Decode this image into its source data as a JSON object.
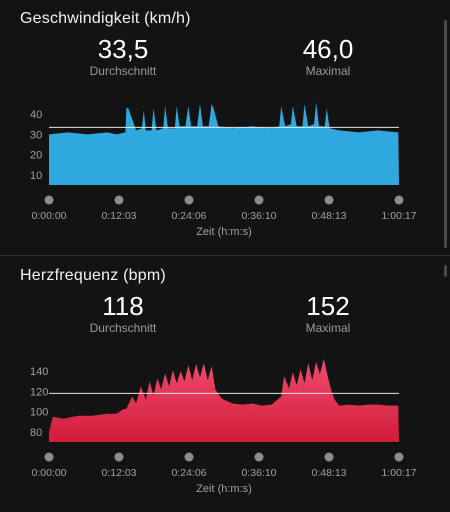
{
  "sections": {
    "speed": {
      "title": "Geschwindigkeit (km/h)",
      "avg": {
        "value": "33,5",
        "label": "Durchschnitt"
      },
      "max": {
        "value": "46,0",
        "label": "Maximal"
      }
    },
    "heart": {
      "title": "Herzfrequenz (bpm)",
      "avg": {
        "value": "118",
        "label": "Durchschnitt"
      },
      "max": {
        "value": "152",
        "label": "Maximal"
      }
    }
  },
  "chart_data": [
    {
      "type": "area",
      "title": "Geschwindigkeit (km/h)",
      "xlabel": "Zeit (h:m:s)",
      "ylabel": "",
      "color": "#2fa8de",
      "reference_line": 33.5,
      "ylim": [
        5,
        47
      ],
      "yticks": [
        10,
        20,
        30,
        40
      ],
      "xlim": [
        0,
        3617
      ],
      "xticks": [
        "0:00:00",
        "0:12:03",
        "0:24:06",
        "0:36:10",
        "0:48:13",
        "1:00:17"
      ],
      "x": [
        0,
        200,
        400,
        600,
        700,
        790,
        800,
        820,
        900,
        960,
        980,
        1000,
        1060,
        1080,
        1110,
        1180,
        1200,
        1230,
        1300,
        1320,
        1350,
        1410,
        1440,
        1470,
        1530,
        1560,
        1590,
        1650,
        1680,
        1700,
        1750,
        1900,
        2100,
        2300,
        2380,
        2400,
        2440,
        2500,
        2520,
        2560,
        2620,
        2640,
        2680,
        2740,
        2760,
        2790,
        2850,
        2870,
        2900,
        3000,
        3200,
        3400,
        3610,
        3617
      ],
      "values": [
        30,
        31,
        30,
        31,
        30,
        31,
        43,
        43,
        32,
        33,
        42,
        32,
        32,
        43,
        32,
        33,
        44,
        33,
        33,
        44,
        34,
        34,
        44,
        34,
        34,
        45,
        34,
        34,
        45,
        43,
        34,
        33,
        34,
        33,
        34,
        44,
        34,
        35,
        44,
        34,
        34,
        45,
        34,
        35,
        46,
        34,
        34,
        43,
        33,
        32,
        31,
        32,
        31,
        0
      ]
    },
    {
      "type": "area",
      "title": "Herzfrequenz (bpm)",
      "xlabel": "Zeit (h:m:s)",
      "ylabel": "",
      "color_top": "#f04c6d",
      "color_bottom": "#d21c3a",
      "reference_line": 118,
      "ylim": [
        70,
        154
      ],
      "yticks": [
        80,
        100,
        120,
        140
      ],
      "xlim": [
        0,
        3617
      ],
      "xticks": [
        "0:00:00",
        "0:12:03",
        "0:24:06",
        "0:36:10",
        "0:48:13",
        "1:00:17"
      ],
      "x": [
        0,
        40,
        150,
        300,
        450,
        600,
        700,
        760,
        800,
        860,
        900,
        950,
        1000,
        1040,
        1080,
        1120,
        1160,
        1200,
        1240,
        1280,
        1320,
        1360,
        1400,
        1440,
        1480,
        1520,
        1560,
        1600,
        1640,
        1680,
        1720,
        1760,
        1800,
        1850,
        1900,
        2000,
        2100,
        2200,
        2300,
        2350,
        2400,
        2430,
        2480,
        2520,
        2560,
        2600,
        2640,
        2680,
        2720,
        2760,
        2800,
        2840,
        2880,
        2920,
        2950,
        3000,
        3100,
        3200,
        3300,
        3400,
        3500,
        3610,
        3617
      ],
      "values": [
        80,
        95,
        93,
        96,
        96,
        98,
        98,
        102,
        103,
        115,
        108,
        125,
        112,
        130,
        116,
        133,
        122,
        138,
        125,
        141,
        128,
        140,
        130,
        146,
        131,
        147,
        134,
        148,
        131,
        145,
        122,
        116,
        112,
        110,
        108,
        107,
        108,
        106,
        107,
        111,
        115,
        135,
        123,
        139,
        126,
        142,
        128,
        148,
        131,
        149,
        137,
        152,
        135,
        120,
        112,
        106,
        107,
        106,
        107,
        107,
        106,
        106,
        0
      ]
    }
  ]
}
